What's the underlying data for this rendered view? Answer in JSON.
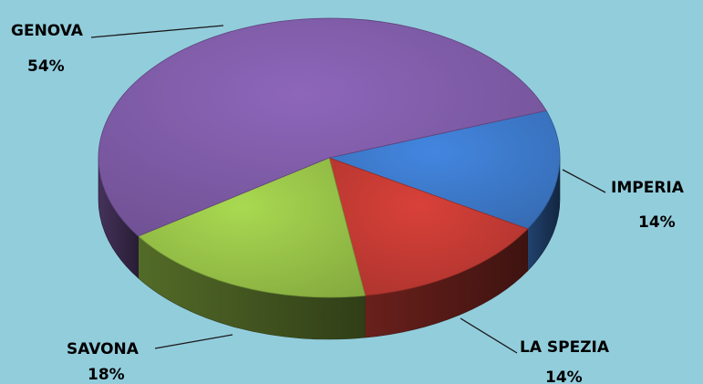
{
  "chart_data": {
    "type": "pie",
    "title": "",
    "slices": [
      {
        "name": "GENOVA",
        "value": 54,
        "label": "54%",
        "color": "#7e5ba6"
      },
      {
        "name": "IMPERIA",
        "value": 14,
        "label": "14%",
        "color": "#3c78c8"
      },
      {
        "name": "LA SPEZIA",
        "value": 14,
        "label": "14%",
        "color": "#c13a33"
      },
      {
        "name": "SAVONA",
        "value": 18,
        "label": "18%",
        "color": "#97c248"
      }
    ],
    "background_color": "#92cddc",
    "style": "3d-pie"
  }
}
